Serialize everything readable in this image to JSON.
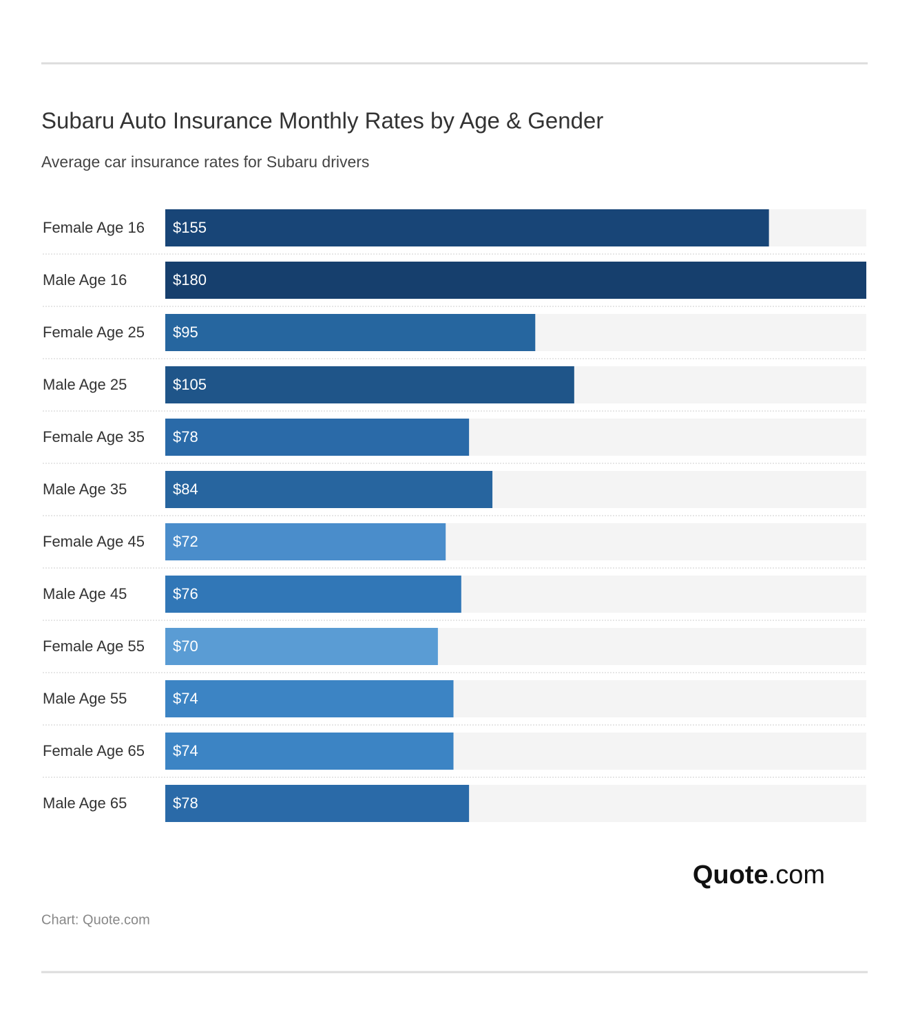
{
  "chart_data": {
    "type": "bar",
    "title": "Subaru Auto Insurance Monthly Rates by Age & Gender",
    "subtitle": "Average car insurance rates for Subaru drivers",
    "categories": [
      "Female Age 16",
      "Male Age 16",
      "Female Age 25",
      "Male Age 25",
      "Female Age 35",
      "Male Age 35",
      "Female Age 45",
      "Male Age 45",
      "Female Age 55",
      "Male Age 55",
      "Female Age 65",
      "Male Age 65"
    ],
    "values": [
      155,
      180,
      95,
      105,
      78,
      84,
      72,
      76,
      70,
      74,
      74,
      78
    ],
    "value_labels": [
      "$155",
      "$180",
      "$95",
      "$105",
      "$78",
      "$84",
      "$72",
      "$76",
      "$70",
      "$74",
      "$74",
      "$78"
    ],
    "colors": [
      "#184577",
      "#163f6d",
      "#26669f",
      "#1f5589",
      "#2a6aa8",
      "#27659f",
      "#4a8dcb",
      "#3177b7",
      "#5a9cd4",
      "#3c84c4",
      "#3c84c4",
      "#2a6aa8"
    ],
    "xlim": [
      0,
      180
    ],
    "logo_name": "Quote",
    "logo_suffix": ".com",
    "source": "Chart: Quote.com"
  }
}
